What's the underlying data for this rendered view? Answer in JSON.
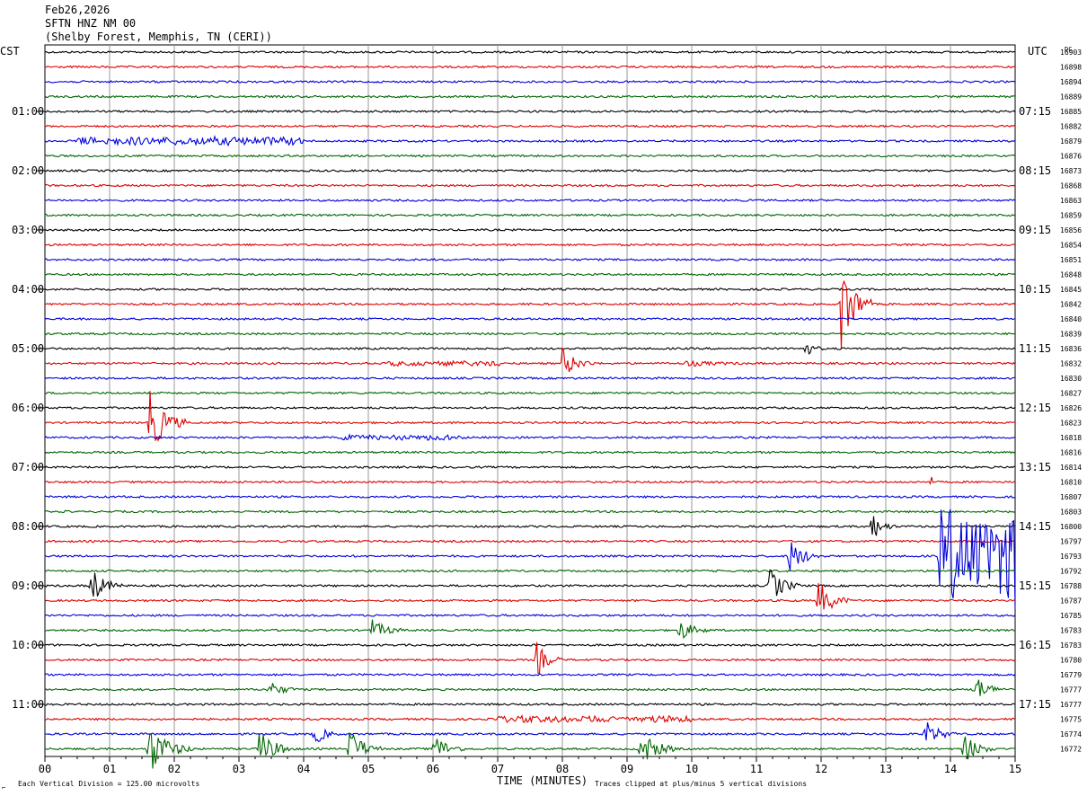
{
  "header": {
    "date": "Feb26,2026",
    "station": "SFTN HNZ NM 00",
    "location": "(Shelby Forest, Memphis, TN (CERI))"
  },
  "left_tz": "CST",
  "right_tz": "UTC",
  "dc_label": "DC",
  "footer": {
    "scale_note": "Each Vertical Division =  125.00 microvolts",
    "clip_note": "Traces clipped at plus/minus 5 vertical divisions",
    "corner_mark": "⌐"
  },
  "chart_data": {
    "type": "line",
    "title": "",
    "xlabel": "TIME (MINUTES)",
    "x_ticks": [
      "00",
      "01",
      "02",
      "03",
      "04",
      "05",
      "06",
      "07",
      "08",
      "09",
      "10",
      "11",
      "12",
      "13",
      "14",
      "15"
    ],
    "xlim": [
      0,
      15
    ],
    "trace_colors": [
      "#000000",
      "#dd0000",
      "#0000dd",
      "#006600"
    ],
    "left_hour_labels": [
      {
        "trace": 4,
        "label": "01:00"
      },
      {
        "trace": 8,
        "label": "02:00"
      },
      {
        "trace": 12,
        "label": "03:00"
      },
      {
        "trace": 16,
        "label": "04:00"
      },
      {
        "trace": 20,
        "label": "05:00"
      },
      {
        "trace": 24,
        "label": "06:00"
      },
      {
        "trace": 28,
        "label": "07:00"
      },
      {
        "trace": 32,
        "label": "08:00"
      },
      {
        "trace": 36,
        "label": "09:00"
      },
      {
        "trace": 40,
        "label": "10:00"
      },
      {
        "trace": 44,
        "label": "11:00"
      }
    ],
    "right_hour_labels": [
      {
        "trace": 4,
        "label": "07:15"
      },
      {
        "trace": 8,
        "label": "08:15"
      },
      {
        "trace": 12,
        "label": "09:15"
      },
      {
        "trace": 16,
        "label": "10:15"
      },
      {
        "trace": 20,
        "label": "11:15"
      },
      {
        "trace": 24,
        "label": "12:15"
      },
      {
        "trace": 28,
        "label": "13:15"
      },
      {
        "trace": 32,
        "label": "14:15"
      },
      {
        "trace": 36,
        "label": "15:15"
      },
      {
        "trace": 40,
        "label": "16:15"
      },
      {
        "trace": 44,
        "label": "17:15"
      }
    ],
    "dc_values": [
      16903,
      16898,
      16894,
      16889,
      16885,
      16882,
      16879,
      16876,
      16873,
      16868,
      16863,
      16859,
      16856,
      16854,
      16851,
      16848,
      16845,
      16842,
      16840,
      16839,
      16836,
      16832,
      16830,
      16827,
      16826,
      16823,
      16818,
      16816,
      16814,
      16810,
      16807,
      16803,
      16800,
      16797,
      16793,
      16792,
      16788,
      16787,
      16785,
      16783,
      16783,
      16780,
      16779,
      16777,
      16777,
      16775,
      16774,
      16772
    ],
    "events": [
      {
        "trace": 6,
        "minute": 0.5,
        "amp": 4,
        "dur": 3.5
      },
      {
        "trace": 17,
        "minute": 12.3,
        "amp": 60,
        "dur": 0.5
      },
      {
        "trace": 20,
        "minute": 11.75,
        "amp": 9,
        "dur": 0.3
      },
      {
        "trace": 21,
        "minute": 8.0,
        "amp": 17,
        "dur": 0.5
      },
      {
        "trace": 21,
        "minute": 5.3,
        "amp": 2,
        "dur": 1.8
      },
      {
        "trace": 21,
        "minute": 9.9,
        "amp": 3,
        "dur": 1.0
      },
      {
        "trace": 25,
        "minute": 1.6,
        "amp": 40,
        "dur": 0.6
      },
      {
        "trace": 26,
        "minute": 4.5,
        "amp": 2,
        "dur": 2.0
      },
      {
        "trace": 29,
        "minute": 13.7,
        "amp": 6,
        "dur": 0.1
      },
      {
        "trace": 32,
        "minute": 12.75,
        "amp": 20,
        "dur": 0.4
      },
      {
        "trace": 34,
        "minute": 11.5,
        "amp": 22,
        "dur": 0.5
      },
      {
        "trace": 34,
        "minute": 13.8,
        "amp": 60,
        "dur": 1.4
      },
      {
        "trace": 36,
        "minute": 0.7,
        "amp": 22,
        "dur": 0.5
      },
      {
        "trace": 36,
        "minute": 11.2,
        "amp": 22,
        "dur": 0.5
      },
      {
        "trace": 37,
        "minute": 11.95,
        "amp": 24,
        "dur": 0.5
      },
      {
        "trace": 39,
        "minute": 5.05,
        "amp": 13,
        "dur": 0.5
      },
      {
        "trace": 39,
        "minute": 9.8,
        "amp": 13,
        "dur": 0.5
      },
      {
        "trace": 41,
        "minute": 7.6,
        "amp": 20,
        "dur": 0.4
      },
      {
        "trace": 43,
        "minute": 3.45,
        "amp": 10,
        "dur": 0.5
      },
      {
        "trace": 43,
        "minute": 14.35,
        "amp": 18,
        "dur": 0.5
      },
      {
        "trace": 45,
        "minute": 7.0,
        "amp": 3,
        "dur": 3.0
      },
      {
        "trace": 46,
        "minute": 4.15,
        "amp": 14,
        "dur": 0.4
      },
      {
        "trace": 46,
        "minute": 13.6,
        "amp": 16,
        "dur": 0.5
      },
      {
        "trace": 47,
        "minute": 1.6,
        "amp": 30,
        "dur": 0.7
      },
      {
        "trace": 47,
        "minute": 3.3,
        "amp": 22,
        "dur": 0.6
      },
      {
        "trace": 47,
        "minute": 4.7,
        "amp": 25,
        "dur": 0.5
      },
      {
        "trace": 47,
        "minute": 6.0,
        "amp": 18,
        "dur": 0.5
      },
      {
        "trace": 47,
        "minute": 9.2,
        "amp": 22,
        "dur": 0.6
      },
      {
        "trace": 47,
        "minute": 14.2,
        "amp": 18,
        "dur": 0.5
      }
    ]
  }
}
